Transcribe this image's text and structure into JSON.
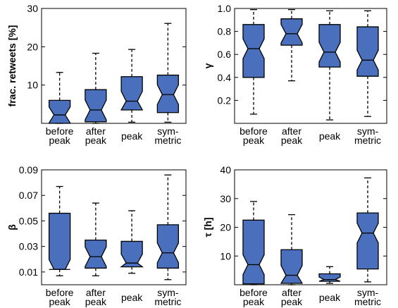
{
  "chart_data": [
    {
      "type": "box",
      "ylabel": "frac. retweets [%]",
      "ylim": [
        0,
        30
      ],
      "yticks": [
        10,
        20,
        30
      ],
      "categories": [
        [
          "before",
          "peak"
        ],
        [
          "after",
          "peak"
        ],
        [
          "peak"
        ],
        [
          "sym-",
          "metric"
        ]
      ],
      "boxes": [
        {
          "whislo": 0,
          "q1": 0,
          "med": 2.2,
          "q3": 6.0,
          "whishi": 13.3
        },
        {
          "whislo": 0,
          "q1": 0.4,
          "med": 3.5,
          "q3": 8.8,
          "whishi": 18.3
        },
        {
          "whislo": 0.3,
          "q1": 3.5,
          "med": 5.8,
          "q3": 12.2,
          "whishi": 19.3
        },
        {
          "whislo": 0.3,
          "q1": 2.8,
          "med": 7.5,
          "q3": 12.6,
          "whishi": 26.1
        }
      ]
    },
    {
      "type": "box",
      "ylabel": "γ",
      "ylim": [
        0,
        1.0
      ],
      "yticks": [
        0.2,
        0.4,
        0.6,
        0.8,
        1.0
      ],
      "tick_labels": [
        "0.2",
        "0.4",
        "0.6",
        "0.8",
        "1.0"
      ],
      "categories": [
        [
          "before",
          "peak"
        ],
        [
          "after",
          "peak"
        ],
        [
          "peak"
        ],
        [
          "sym-",
          "metric"
        ]
      ],
      "boxes": [
        {
          "whislo": 0.08,
          "q1": 0.4,
          "med": 0.65,
          "q3": 0.86,
          "whishi": 0.99
        },
        {
          "whislo": 0.37,
          "q1": 0.68,
          "med": 0.78,
          "q3": 0.91,
          "whishi": 0.99
        },
        {
          "whislo": 0.03,
          "q1": 0.49,
          "med": 0.62,
          "q3": 0.86,
          "whishi": 0.98
        },
        {
          "whislo": 0.06,
          "q1": 0.41,
          "med": 0.55,
          "q3": 0.84,
          "whishi": 0.98
        }
      ]
    },
    {
      "type": "box",
      "ylabel": "β",
      "ylim": [
        0,
        0.09
      ],
      "yticks": [
        0.01,
        0.03,
        0.05,
        0.07,
        0.09
      ],
      "tick_labels": [
        "0.01",
        "0.03",
        "0.05",
        "0.07",
        "0.09"
      ],
      "categories": [
        [
          "before",
          "peak"
        ],
        [
          "after",
          "peak"
        ],
        [
          "peak"
        ],
        [
          "sym-",
          "metric"
        ]
      ],
      "boxes": [
        {
          "whislo": 0.007,
          "q1": 0.012,
          "med": 0.012,
          "q3": 0.056,
          "whishi": 0.077
        },
        {
          "whislo": 0.007,
          "q1": 0.013,
          "med": 0.022,
          "q3": 0.035,
          "whishi": 0.064
        },
        {
          "whislo": 0.009,
          "q1": 0.014,
          "med": 0.017,
          "q3": 0.034,
          "whishi": 0.058
        },
        {
          "whislo": 0.004,
          "q1": 0.013,
          "med": 0.025,
          "q3": 0.047,
          "whishi": 0.086
        }
      ]
    },
    {
      "type": "box",
      "ylabel": "τ [h]",
      "ylim": [
        0,
        40
      ],
      "yticks": [
        10,
        20,
        30,
        40
      ],
      "categories": [
        [
          "before",
          "peak"
        ],
        [
          "after",
          "peak"
        ],
        [
          "peak"
        ],
        [
          "sym-",
          "metric"
        ]
      ],
      "boxes": [
        {
          "whislo": 0,
          "q1": 0.3,
          "med": 7.0,
          "q3": 22.5,
          "whishi": 29.0
        },
        {
          "whislo": 0,
          "q1": 0.5,
          "med": 3.3,
          "q3": 12.2,
          "whishi": 24.4
        },
        {
          "whislo": 0.5,
          "q1": 1.2,
          "med": 1.8,
          "q3": 3.8,
          "whishi": 6.3
        },
        {
          "whislo": 1.0,
          "q1": 5.5,
          "med": 18.0,
          "q3": 25.0,
          "whishi": 37.2
        }
      ]
    }
  ]
}
